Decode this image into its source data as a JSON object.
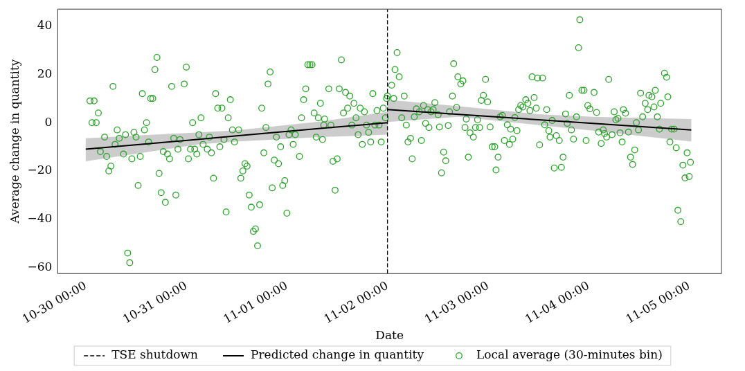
{
  "chart_data": {
    "type": "scatter",
    "xlabel": "Date",
    "ylabel": "Average change in quantity",
    "xlim": [
      "--10-29T17:18",
      "--11-05T07:42"
    ],
    "ylim": [
      -62.5,
      47
    ],
    "xticks": [
      {
        "value": "--10-30T00:00",
        "label": "10-30 00:00"
      },
      {
        "value": "--10-31T00:00",
        "label": "10-31 00:00"
      },
      {
        "value": "--11-01T00:00",
        "label": "11-01 00:00"
      },
      {
        "value": "--11-02T00:00",
        "label": "11-02 00:00"
      },
      {
        "value": "--11-03T00:00",
        "label": "11-03 00:00"
      },
      {
        "value": "--11-04T00:00",
        "label": "11-04 00:00"
      },
      {
        "value": "--11-05T00:00",
        "label": "11-05 00:00"
      }
    ],
    "yticks": [
      -60,
      -40,
      -20,
      0,
      20,
      40
    ],
    "grid": false,
    "legend": "bottom",
    "ref_lines": [
      {
        "axis": "x",
        "value": "--11-02T00:00",
        "label": "TSE shutdown",
        "color": "#000000",
        "line_style": "dashed"
      }
    ],
    "series": [
      {
        "type": "line",
        "name": "Predicted change in quantity",
        "color": "#000000",
        "line_style": "solid",
        "x": [
          "--10-30T00:00",
          "--10-31T03:00",
          "--10-31T12:00",
          "--11-01T08:00",
          "--11-02T00:00"
        ],
        "values": [
          -11,
          -6.9,
          -5.5,
          -2.4,
          0
        ],
        "lower": [
          -16,
          -9,
          -7.8,
          -6,
          -5
        ],
        "upper": [
          -6.5,
          -4,
          -3.2,
          0.5,
          4.5
        ]
      },
      {
        "type": "line",
        "color": "#000000",
        "line_style": "solid",
        "x": [
          "--11-02T00:00",
          "--11-02T17:00",
          "--11-03T12:00",
          "--11-04T01:00",
          "--11-05T00:30"
        ],
        "values": [
          5.4,
          3.4,
          1.2,
          -0.3,
          -3
        ],
        "lower": [
          0.3,
          2.4,
          -1,
          -3.3,
          -7.8
        ],
        "upper": [
          9.5,
          6.8,
          3.5,
          2.4,
          1.5
        ]
      },
      {
        "name": "Local average (30-minutes bin)",
        "color": "#2ca02c",
        "marker": "circle",
        "x": [
          "--10-30T01:00",
          "--10-30T02:00",
          "--10-30T03:00",
          "--10-30T01:30",
          "--10-30T02:30",
          "--10-30T04:30",
          "--10-30T03:30",
          "--10-30T05:00",
          "--10-30T06:00",
          "--10-30T05:30",
          "--10-30T06:30",
          "--10-30T07:00",
          "--10-30T08:00",
          "--10-30T09:30",
          "--10-30T07:30",
          "--10-30T09:00",
          "--10-30T11:00",
          "--10-30T11:30",
          "--10-30T12:00",
          "--10-30T13:00",
          "--10-30T13:30",
          "--10-30T12:30",
          "--10-30T10:00",
          "--10-30T10:30",
          "--10-30T14:00",
          "--10-30T14:30",
          "--10-30T15:00",
          "--10-30T15:30",
          "--10-30T16:00",
          "--10-30T16:30",
          "--10-30T17:00",
          "--10-30T17:30",
          "--10-30T18:00",
          "--10-30T19:00",
          "--10-30T18:30",
          "--10-30T19:30",
          "--10-30T20:00",
          "--10-30T20:30",
          "--10-30T21:00",
          "--10-30T22:00",
          "--10-30T21:30",
          "--10-30T22:30",
          "--10-30T23:30",
          "--10-31T00:00",
          "--10-31T00:30",
          "--10-31T01:00",
          "--10-31T01:30",
          "--10-31T02:00",
          "--10-31T02:30",
          "--10-31T03:30",
          "--10-31T03:00",
          "--10-31T04:00",
          "--10-31T05:30",
          "--10-31T05:00",
          "--10-31T06:00",
          "--10-31T07:00",
          "--10-31T07:30",
          "--10-31T08:30",
          "--10-31T06:30",
          "--10-31T08:00",
          "--10-31T09:00",
          "--10-31T10:00",
          "--10-31T10:30",
          "--10-31T11:00",
          "--10-31T11:30",
          "--10-31T12:30",
          "--10-31T09:30",
          "--10-31T13:00",
          "--10-31T13:30",
          "--10-31T14:00",
          "--10-31T14:30",
          "--10-31T15:00",
          "--10-31T15:30",
          "--10-31T17:30",
          "--10-31T16:00",
          "--10-31T16:30",
          "--10-31T17:00",
          "--10-31T18:00",
          "--10-31T18:30",
          "--10-31T19:00",
          "--10-31T19:30",
          "--10-31T20:00",
          "--10-31T20:30",
          "--10-31T21:00",
          "--10-31T21:30",
          "--10-31T22:00",
          "--10-31T22:30",
          "--10-31T23:00",
          "--10-31T23:30",
          "--11-01T00:00",
          "--11-01T00:30",
          "--11-01T01:00",
          "--11-01T01:30",
          "--11-01T02:00",
          "--11-01T03:00",
          "--11-01T03:30",
          "--11-01T04:00",
          "--11-01T04:30",
          "--11-01T05:00",
          "--11-01T05:30",
          "--11-01T06:00",
          "--11-01T06:30",
          "--11-01T07:00",
          "--11-01T07:30",
          "--11-01T08:00",
          "--11-01T08:30",
          "--11-01T09:00",
          "--11-01T08:48",
          "--11-01T10:30",
          "--11-01T10:00",
          "--11-01T11:00",
          "--11-01T12:00",
          "--11-01T11:30",
          "--11-01T12:30",
          "--11-01T13:00",
          "--11-01T14:00",
          "--11-01T15:00",
          "--11-01T13:30",
          "--11-01T14:30",
          "--11-01T15:30",
          "--11-01T16:00",
          "--11-01T16:30",
          "--11-01T17:00",
          "--11-01T17:30",
          "--11-01T18:30",
          "--11-01T18:00",
          "--11-01T19:00",
          "--11-01T19:30",
          "--11-01T20:00",
          "--11-01T20:30",
          "--11-01T21:00",
          "--11-01T21:30",
          "--11-01T22:00",
          "--11-01T22:30",
          "--11-01T23:00",
          "--11-01T23:30",
          "--11-01T23:48",
          "--11-02T00:00",
          "--11-02T01:00",
          "--11-02T01:30",
          "--11-02T02:18",
          "--11-02T01:48",
          "--11-02T02:48",
          "--11-02T04:00",
          "--11-02T03:24",
          "--11-02T04:30",
          "--11-02T04:54",
          "--11-02T05:30",
          "--11-02T05:54",
          "--11-02T06:24",
          "--11-02T06:54",
          "--11-02T07:36",
          "--11-02T08:06",
          "--11-02T08:36",
          "--11-02T09:06",
          "--11-02T09:36",
          "--11-02T09:54",
          "--11-02T10:24",
          "--11-02T10:54",
          "--11-02T11:18",
          "--11-02T12:06",
          "--11-02T12:24",
          "--11-02T13:24",
          "--11-02T13:54",
          "--11-02T12:54",
          "--11-02T14:30",
          "--11-02T14:48",
          "--11-02T15:30",
          "--11-02T15:48",
          "--11-02T16:30",
          "--11-02T16:48",
          "--11-02T17:30",
          "--11-02T18:00",
          "--11-02T18:48",
          "--11-02T18:30",
          "--11-02T19:42",
          "--11-02T20:30",
          "--11-02T21:00",
          "--11-02T21:30",
          "--11-02T22:00",
          "--11-02T19:18",
          "--11-02T22:24",
          "--11-02T22:54",
          "--11-02T23:54",
          "--11-02T23:24",
          "--11-03T00:30",
          "--11-03T01:00",
          "--11-03T01:36",
          "--11-03T02:24",
          "--11-03T01:54",
          "--11-03T02:54",
          "--11-03T03:24",
          "--11-03T03:54",
          "--11-03T04:36",
          "--11-03T05:06",
          "--11-03T05:24",
          "--11-03T05:54",
          "--11-03T06:24",
          "--11-03T06:54",
          "--11-03T07:18",
          "--11-03T07:48",
          "--11-03T08:18",
          "--11-03T09:00",
          "--11-03T09:30",
          "--11-03T10:00",
          "--11-03T10:30",
          "--11-03T11:00",
          "--11-03T11:30",
          "--11-03T11:48",
          "--11-03T13:00",
          "--11-03T12:18",
          "--11-03T13:30",
          "--11-03T14:00",
          "--11-03T14:30",
          "--11-03T14:48",
          "--11-03T15:18",
          "--11-03T15:48",
          "--11-03T16:18",
          "--11-03T17:00",
          "--11-03T17:30",
          "--11-03T17:54",
          "--11-03T18:30",
          "--11-03T18:54",
          "--11-03T19:24",
          "--11-03T19:54",
          "--11-03T20:24",
          "--11-03T21:06",
          "--11-03T21:36",
          "--11-03T21:54",
          "--11-03T22:24",
          "--11-03T22:54",
          "--11-03T23:24",
          "--11-03T23:48",
          "--11-04T00:18",
          "--11-04T01:18",
          "--11-04T01:54",
          "--11-04T02:24",
          "--11-04T03:00",
          "--11-04T03:30",
          "--11-04T03:48",
          "--11-04T04:18",
          "--11-04T04:48",
          "--11-04T05:36",
          "--11-04T06:06",
          "--11-04T06:30",
          "--11-04T07:00",
          "--11-04T07:30",
          "--11-04T08:00",
          "--11-04T08:18",
          "--11-04T08:48",
          "--11-04T09:30",
          "--11-04T10:00",
          "--11-04T10:30",
          "--11-04T11:00",
          "--11-04T11:24",
          "--11-04T11:54",
          "--11-04T12:24",
          "--11-04T12:54",
          "--11-04T13:30",
          "--11-04T14:06",
          "--11-04T14:24",
          "--11-04T15:06",
          "--11-04T15:36",
          "--11-04T15:54",
          "--11-04T16:24",
          "--11-04T16:54",
          "--11-04T17:12",
          "--11-04T18:06",
          "--11-04T18:36",
          "--11-04T18:54",
          "--11-04T19:24",
          "--11-04T19:48",
          "--11-04T20:24",
          "--11-04T20:54",
          "--11-04T21:18",
          "--11-04T22:00",
          "--11-04T22:30",
          "--11-04T23:30",
          "--11-04T23:00",
          "--11-05T00:00",
          "--11-05T00:18"
        ],
        "values": [
          9,
          9,
          4,
          0,
          0,
          -6,
          -12,
          -14,
          -18,
          -20,
          15,
          -9,
          -6.5,
          -5,
          -3,
          -13,
          -15,
          -4,
          -6,
          -14,
          12,
          -26,
          -54,
          -58,
          -3,
          0,
          -8,
          10,
          10,
          22,
          27,
          -21,
          -29,
          -33,
          -12,
          -13,
          -15,
          15,
          -6.5,
          -11,
          -30,
          -7,
          16,
          23,
          -15,
          -11,
          0,
          -11,
          -13,
          2,
          -5,
          -9,
          -6,
          -11,
          -12.5,
          12,
          6,
          6,
          -23,
          -10,
          -7,
          2,
          9.5,
          -3,
          -8,
          -3,
          -37,
          -23,
          -20,
          -17,
          -18,
          -30,
          -35,
          -34,
          -45,
          -44,
          -51,
          6,
          -12.5,
          -2,
          16,
          21,
          -27,
          -15.5,
          -6,
          -17,
          -10,
          -26,
          -24,
          -37.5,
          -5,
          -3,
          -9,
          -5,
          -14,
          2,
          9.5,
          14,
          24,
          24,
          24,
          4,
          -6,
          2,
          8,
          -7,
          1.5,
          -1,
          -1,
          14,
          -16,
          -15,
          -28,
          14,
          26,
          12.5,
          11,
          4,
          6,
          -1,
          8,
          2,
          -5,
          6,
          4.5,
          -9,
          -1,
          -4,
          -8,
          12,
          -1,
          5,
          -1,
          -8,
          6,
          2,
          10,
          11,
          15.5,
          10,
          29,
          22,
          19,
          11,
          2,
          -1,
          -8,
          -6.5,
          -15,
          2.4,
          5.7,
          4.5,
          -7.4,
          7.1,
          -0.3,
          5.4,
          -2,
          4.5,
          5.4,
          8.3,
          3.3,
          -1.8,
          -12.2,
          -15.8,
          -20.8,
          -1.2,
          4.5,
          11,
          24.4,
          6.3,
          19,
          16,
          17.3,
          1.5,
          -2,
          -4.2,
          -6,
          -2,
          1.2,
          -2,
          -14.3,
          9.2,
          11.3,
          8.6,
          17.9,
          -1.8,
          -10,
          -10,
          -14.3,
          -19.6,
          2.4,
          3,
          -7.4,
          -0.9,
          -9,
          -2.7,
          -6.8,
          2.1,
          -3.3,
          5.4,
          7.1,
          6.5,
          9.5,
          8,
          5,
          19,
          10.4,
          6,
          18.5,
          18.5,
          -9.2,
          -0.9,
          5.4,
          -3.3,
          -6,
          0.9,
          -18.8,
          -5.4,
          -7.4,
          -18.5,
          -14.3,
          3.6,
          -0.3,
          11.3,
          -3,
          -6.8,
          2.4,
          31,
          42.6,
          13.4,
          13.4,
          -7.4,
          7.1,
          5.7,
          12.5,
          4.2,
          -3.9,
          -8.6,
          -3,
          -4.5,
          -6,
          17.9,
          -5,
          4.5,
          1.2,
          1.8,
          -4.2,
          -8,
          5.4,
          3.9,
          -3.9,
          -14.3,
          -17.3,
          -11.3,
          0,
          -3,
          12.2,
          2.4,
          8,
          5.4,
          11.3,
          10.7,
          6.5,
          13.4,
          2.4,
          -2.7,
          8,
          20.5,
          18.8,
          10.7,
          -8,
          -2.7,
          -2.7,
          -10.4,
          -36.3,
          -41,
          -17.6,
          -12.5,
          -22.9,
          -22.3,
          -16.4
        ]
      }
    ]
  }
}
